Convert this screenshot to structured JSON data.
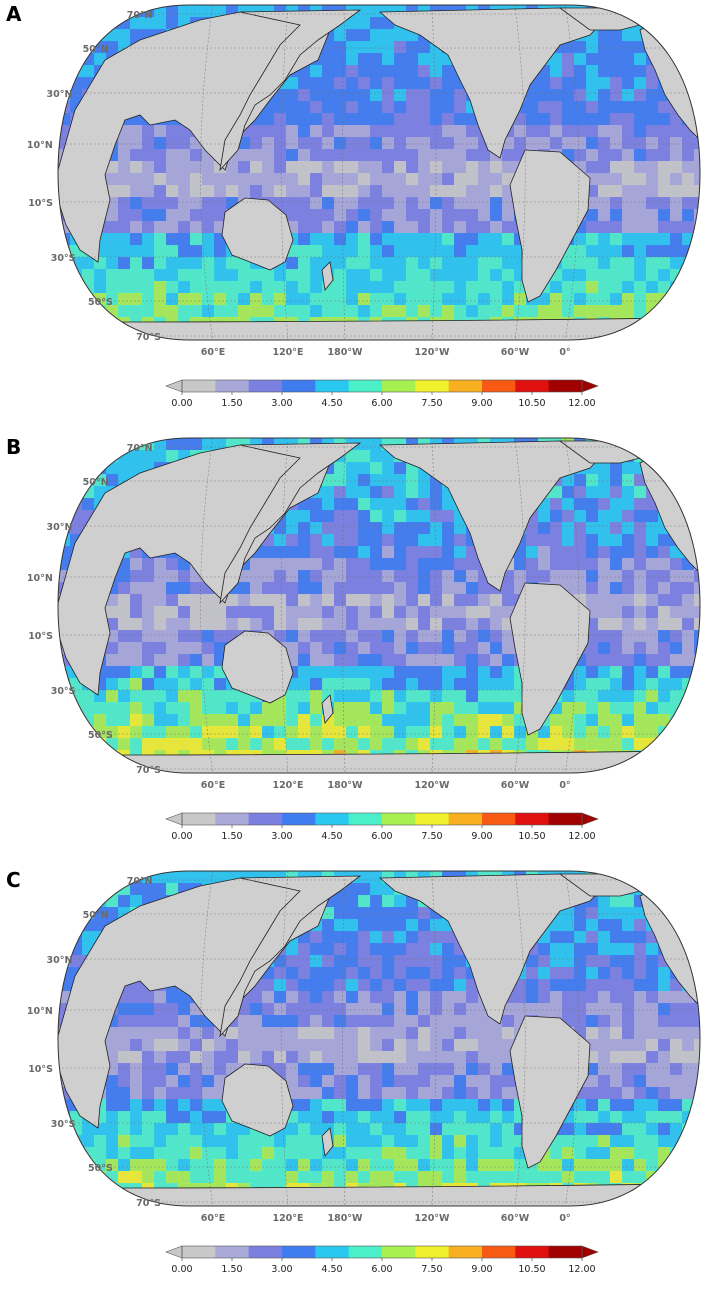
{
  "panels": [
    {
      "id": "A",
      "label": "A"
    },
    {
      "id": "B",
      "label": "B"
    },
    {
      "id": "C",
      "label": "C"
    }
  ],
  "lat_labels": [
    "70°N",
    "50°N",
    "30°N",
    "10°N",
    "10°S",
    "30°S",
    "50°S",
    "70°S"
  ],
  "lon_labels": [
    "60°E",
    "120°E",
    "180°W",
    "120°W",
    "60°W",
    "0°"
  ],
  "colorbar": {
    "ticks": [
      "0.00",
      "1.50",
      "3.00",
      "4.50",
      "6.00",
      "7.50",
      "9.00",
      "10.50",
      "12.00"
    ],
    "min": 0,
    "max": 12,
    "colors": [
      "#c8c8c8",
      "#a9a9d8",
      "#7b7fe0",
      "#3f7cf0",
      "#29c8f0",
      "#4cf0c8",
      "#a8f050",
      "#f0f02c",
      "#f8b020",
      "#f85a14",
      "#e01010",
      "#a00000"
    ]
  },
  "colors": {
    "land": "#cfcfcf",
    "coast": "#222222",
    "grid": "#6e6e6e",
    "ocean_base": "#8585d6"
  }
}
